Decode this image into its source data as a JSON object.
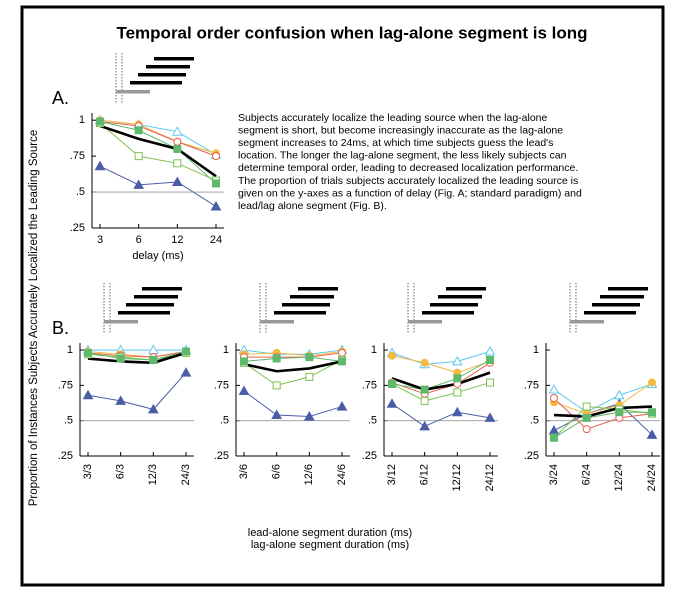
{
  "title": "Temporal order confusion when lag-alone segment is long",
  "y_axis_label": "Proportion of Instances Subjects Accurately Localized the Leading Source",
  "description": [
    "Subjects accurately localize the leading source when the lag-alone",
    "segment is short, but become increasingly inaccurate as the lag-alone",
    "segment increases to 24ms, at which time subjects guess the lead's",
    "location.  The longer the lag-alone segment, the less likely subjects can",
    "determine temporal order, leading to decreased localization performance.",
    "The proportion of trials subjects accurately localized the leading source is",
    "given on the y-axes as a function of delay (Fig. A; standard paradigm) and",
    "lead/lag alone segment (Fig. B)."
  ],
  "x_axis_label_b": [
    "lead-alone segment duration (ms)",
    "lag-alone segment duration (ms)"
  ],
  "chart_data": [
    {
      "type": "line",
      "label": "A.",
      "xlabel": "delay (ms)",
      "categories": [
        "3",
        "6",
        "12",
        "24"
      ],
      "ylim": [
        0.25,
        1.05
      ],
      "yticks": [
        {
          "value": 0.25,
          "label": ".25"
        },
        {
          "value": 0.5,
          "label": ".5"
        },
        {
          "value": 0.75,
          "label": ".75"
        },
        1
      ],
      "hline": 0.5,
      "series": [
        {
          "color": "#4a5ea8",
          "marker": "triangle",
          "filled": true,
          "values": [
            0.68,
            0.55,
            0.57,
            0.4
          ]
        },
        {
          "color": "#5bc8f0",
          "marker": "triangle",
          "filled": false,
          "values": [
            1.0,
            0.97,
            0.92,
            0.76
          ]
        },
        {
          "color": "#f5b942",
          "marker": "circle",
          "filled": true,
          "values": [
            1.0,
            0.97,
            0.85,
            0.77
          ]
        },
        {
          "color": "#e8604c",
          "marker": "circle",
          "filled": false,
          "values": [
            0.99,
            0.96,
            0.85,
            0.75
          ]
        },
        {
          "color": "#7cc24e",
          "marker": "square",
          "filled": false,
          "values": [
            0.98,
            0.75,
            0.7,
            0.58
          ]
        },
        {
          "color": "#5fb86b",
          "marker": "square",
          "filled": true,
          "values": [
            0.99,
            0.93,
            0.8,
            0.56
          ]
        },
        {
          "color": "#000000",
          "marker": "none",
          "filled": false,
          "values": [
            0.96,
            0.87,
            0.8,
            0.61
          ]
        }
      ]
    },
    {
      "type": "line",
      "label": "B.",
      "categories": [
        "3/3",
        "6/3",
        "12/3",
        "24/3"
      ],
      "ylim": [
        0.25,
        1.05
      ],
      "yticks": [
        {
          "value": 0.25,
          "label": ".25"
        },
        {
          "value": 0.5,
          "label": ".5"
        },
        {
          "value": 0.75,
          "label": ".75"
        },
        1
      ],
      "hline": 0.5,
      "series": [
        {
          "color": "#4a5ea8",
          "marker": "triangle",
          "filled": true,
          "values": [
            0.68,
            0.64,
            0.58,
            0.84
          ]
        },
        {
          "color": "#5bc8f0",
          "marker": "triangle",
          "filled": false,
          "values": [
            1.0,
            1.0,
            1.0,
            1.0
          ]
        },
        {
          "color": "#f5b942",
          "marker": "circle",
          "filled": true,
          "values": [
            0.99,
            0.97,
            0.95,
            0.99
          ]
        },
        {
          "color": "#e8604c",
          "marker": "circle",
          "filled": false,
          "values": [
            0.98,
            0.96,
            0.95,
            0.99
          ]
        },
        {
          "color": "#7cc24e",
          "marker": "square",
          "filled": false,
          "values": [
            0.97,
            0.95,
            0.93,
            0.98
          ]
        },
        {
          "color": "#5fb86b",
          "marker": "square",
          "filled": true,
          "values": [
            0.98,
            0.94,
            0.93,
            0.99
          ]
        },
        {
          "color": "#000000",
          "marker": "none",
          "filled": false,
          "values": [
            0.94,
            0.92,
            0.91,
            0.98
          ]
        }
      ]
    },
    {
      "type": "line",
      "categories": [
        "3/6",
        "6/6",
        "12/6",
        "24/6"
      ],
      "ylim": [
        0.25,
        1.05
      ],
      "yticks": [
        {
          "value": 0.25,
          "label": ".25"
        },
        {
          "value": 0.5,
          "label": ".5"
        },
        {
          "value": 0.75,
          "label": ".75"
        },
        1
      ],
      "hline": 0.5,
      "series": [
        {
          "color": "#4a5ea8",
          "marker": "triangle",
          "filled": true,
          "values": [
            0.71,
            0.54,
            0.53,
            0.6
          ]
        },
        {
          "color": "#5bc8f0",
          "marker": "triangle",
          "filled": false,
          "values": [
            1.0,
            0.97,
            0.97,
            1.0
          ]
        },
        {
          "color": "#f5b942",
          "marker": "circle",
          "filled": true,
          "values": [
            0.97,
            0.98,
            0.96,
            0.99
          ]
        },
        {
          "color": "#e8604c",
          "marker": "circle",
          "filled": false,
          "values": [
            0.95,
            0.95,
            0.95,
            0.98
          ]
        },
        {
          "color": "#7cc24e",
          "marker": "square",
          "filled": false,
          "values": [
            0.91,
            0.75,
            0.81,
            0.93
          ]
        },
        {
          "color": "#5fb86b",
          "marker": "square",
          "filled": true,
          "values": [
            0.92,
            0.94,
            0.95,
            0.92
          ]
        },
        {
          "color": "#000000",
          "marker": "none",
          "filled": false,
          "values": [
            0.9,
            0.85,
            0.87,
            0.92
          ]
        }
      ]
    },
    {
      "type": "line",
      "categories": [
        "3/12",
        "6/12",
        "12/12",
        "24/12"
      ],
      "ylim": [
        0.25,
        1.05
      ],
      "yticks": [
        {
          "value": 0.25,
          "label": ".25"
        },
        {
          "value": 0.5,
          "label": ".5"
        },
        {
          "value": 0.75,
          "label": ".75"
        },
        1
      ],
      "hline": 0.5,
      "series": [
        {
          "color": "#4a5ea8",
          "marker": "triangle",
          "filled": true,
          "values": [
            0.62,
            0.46,
            0.56,
            0.52
          ]
        },
        {
          "color": "#5bc8f0",
          "marker": "triangle",
          "filled": false,
          "values": [
            0.98,
            0.9,
            0.92,
            0.99
          ]
        },
        {
          "color": "#f5b942",
          "marker": "circle",
          "filled": true,
          "values": [
            0.96,
            0.91,
            0.84,
            0.92
          ]
        },
        {
          "color": "#e8604c",
          "marker": "circle",
          "filled": false,
          "values": [
            0.77,
            0.69,
            0.76,
            0.91
          ]
        },
        {
          "color": "#7cc24e",
          "marker": "square",
          "filled": false,
          "values": [
            0.76,
            0.64,
            0.7,
            0.77
          ]
        },
        {
          "color": "#5fb86b",
          "marker": "square",
          "filled": true,
          "values": [
            0.76,
            0.72,
            0.8,
            0.93
          ]
        },
        {
          "color": "#000000",
          "marker": "none",
          "filled": false,
          "values": [
            0.8,
            0.72,
            0.76,
            0.84
          ]
        }
      ]
    },
    {
      "type": "line",
      "categories": [
        "3/24",
        "6/24",
        "12/24",
        "24/24"
      ],
      "ylim": [
        0.25,
        1.05
      ],
      "yticks": [
        {
          "value": 0.25,
          "label": ".25"
        },
        {
          "value": 0.5,
          "label": ".5"
        },
        {
          "value": 0.75,
          "label": ".75"
        },
        1
      ],
      "hline": 0.5,
      "series": [
        {
          "color": "#4a5ea8",
          "marker": "triangle",
          "filled": true,
          "values": [
            0.43,
            0.55,
            0.62,
            0.4
          ]
        },
        {
          "color": "#5bc8f0",
          "marker": "triangle",
          "filled": false,
          "values": [
            0.72,
            0.56,
            0.68,
            0.76
          ]
        },
        {
          "color": "#f5b942",
          "marker": "circle",
          "filled": true,
          "values": [
            0.63,
            0.55,
            0.61,
            0.77
          ]
        },
        {
          "color": "#e8604c",
          "marker": "circle",
          "filled": false,
          "values": [
            0.66,
            0.44,
            0.52,
            0.55
          ]
        },
        {
          "color": "#7cc24e",
          "marker": "square",
          "filled": false,
          "values": [
            0.38,
            0.6,
            0.58,
            0.55
          ]
        },
        {
          "color": "#5fb86b",
          "marker": "square",
          "filled": true,
          "values": [
            0.38,
            0.52,
            0.56,
            0.56
          ]
        },
        {
          "color": "#000000",
          "marker": "none",
          "filled": false,
          "values": [
            0.54,
            0.53,
            0.59,
            0.6
          ]
        }
      ]
    }
  ]
}
